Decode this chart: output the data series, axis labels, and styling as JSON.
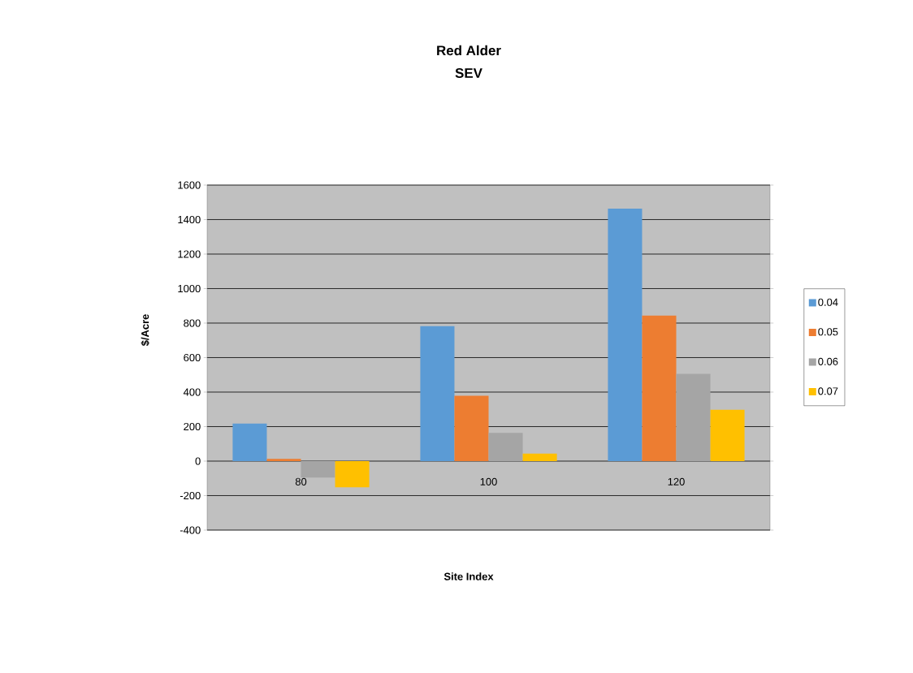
{
  "chart_data": {
    "type": "bar",
    "title": "Red Alder",
    "subtitle": "SEV",
    "xlabel": "Site Index",
    "ylabel": "$/Acre",
    "categories": [
      "80",
      "100",
      "120"
    ],
    "series": [
      {
        "name": "0.04",
        "color": "#5b9bd5",
        "values": [
          217,
          782,
          1463
        ]
      },
      {
        "name": "0.05",
        "color": "#ed7d31",
        "values": [
          13,
          379,
          843
        ]
      },
      {
        "name": "0.06",
        "color": "#a5a5a5",
        "values": [
          -95,
          164,
          506
        ]
      },
      {
        "name": "0.07",
        "color": "#ffc000",
        "values": [
          -152,
          44,
          297
        ]
      }
    ],
    "ylim": [
      -400,
      1600
    ],
    "yticks": [
      -400,
      -200,
      0,
      200,
      400,
      600,
      800,
      1000,
      1200,
      1400,
      1600
    ],
    "grid": "y",
    "legend": "right"
  }
}
